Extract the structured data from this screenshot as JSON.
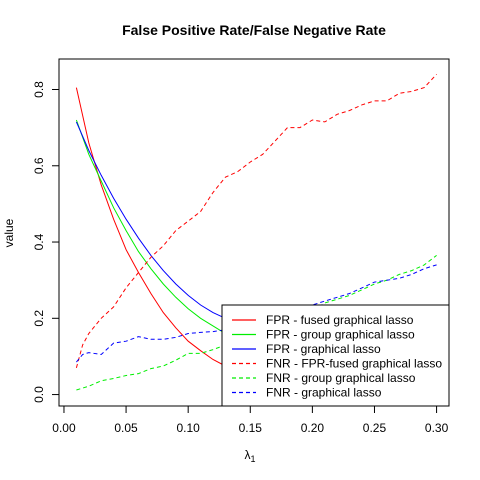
{
  "chart_data": {
    "type": "line",
    "title": "False Positive Rate/False Negative Rate",
    "xlabel_main": "λ",
    "xlabel_sub": "1",
    "ylabel": "value",
    "xlim": [
      -0.004,
      0.31
    ],
    "ylim": [
      -0.03,
      0.88
    ],
    "xticks": [
      {
        "value": 0.0,
        "label": "0.00"
      },
      {
        "value": 0.05,
        "label": "0.05"
      },
      {
        "value": 0.1,
        "label": "0.10"
      },
      {
        "value": 0.15,
        "label": "0.15"
      },
      {
        "value": 0.2,
        "label": "0.20"
      },
      {
        "value": 0.25,
        "label": "0.25"
      },
      {
        "value": 0.3,
        "label": "0.30"
      }
    ],
    "yticks": [
      {
        "value": 0.0,
        "label": "0.0"
      },
      {
        "value": 0.2,
        "label": "0.2"
      },
      {
        "value": 0.4,
        "label": "0.4"
      },
      {
        "value": 0.6,
        "label": "0.6"
      },
      {
        "value": 0.8,
        "label": "0.8"
      }
    ],
    "legend_position": "bottom-right",
    "series": [
      {
        "name": "FPR - fused graphical lasso",
        "color": "#ff0000",
        "dash": "solid",
        "x": [
          0.01,
          0.02,
          0.03,
          0.04,
          0.05,
          0.06,
          0.07,
          0.08,
          0.09,
          0.1,
          0.11,
          0.12,
          0.13,
          0.14
        ],
        "y": [
          0.805,
          0.66,
          0.55,
          0.46,
          0.38,
          0.32,
          0.265,
          0.215,
          0.175,
          0.14,
          0.115,
          0.092,
          0.075,
          0.06
        ]
      },
      {
        "name": "FPR - group graphical lasso",
        "color": "#00ee00",
        "dash": "solid",
        "x": [
          0.01,
          0.02,
          0.03,
          0.04,
          0.05,
          0.06,
          0.07,
          0.08,
          0.09,
          0.1,
          0.11,
          0.12,
          0.13,
          0.14,
          0.15
        ],
        "y": [
          0.72,
          0.63,
          0.56,
          0.49,
          0.43,
          0.375,
          0.33,
          0.29,
          0.255,
          0.225,
          0.2,
          0.18,
          0.16,
          0.148,
          0.138
        ]
      },
      {
        "name": "FPR - graphical lasso",
        "color": "#0000ff",
        "dash": "solid",
        "x": [
          0.01,
          0.02,
          0.03,
          0.04,
          0.05,
          0.06,
          0.07,
          0.08,
          0.09,
          0.1,
          0.11,
          0.12,
          0.13,
          0.14,
          0.15
        ],
        "y": [
          0.715,
          0.64,
          0.575,
          0.515,
          0.46,
          0.41,
          0.365,
          0.325,
          0.29,
          0.26,
          0.235,
          0.215,
          0.2,
          0.188,
          0.178
        ]
      },
      {
        "name": "FNR - FPR-fused graphical lasso",
        "color": "#ff0000",
        "dash": "dashed",
        "x": [
          0.01,
          0.015,
          0.02,
          0.03,
          0.04,
          0.05,
          0.06,
          0.07,
          0.08,
          0.09,
          0.1,
          0.11,
          0.12,
          0.13,
          0.14,
          0.15,
          0.16,
          0.17,
          0.18,
          0.19,
          0.2,
          0.21,
          0.22,
          0.23,
          0.24,
          0.25,
          0.26,
          0.27,
          0.28,
          0.29,
          0.3
        ],
        "y": [
          0.07,
          0.13,
          0.16,
          0.2,
          0.23,
          0.28,
          0.32,
          0.36,
          0.39,
          0.43,
          0.455,
          0.48,
          0.53,
          0.57,
          0.585,
          0.61,
          0.63,
          0.665,
          0.7,
          0.7,
          0.72,
          0.715,
          0.735,
          0.745,
          0.76,
          0.77,
          0.77,
          0.79,
          0.795,
          0.805,
          0.84
        ]
      },
      {
        "name": "FNR - group graphical lasso",
        "color": "#00ee00",
        "dash": "dashed",
        "x": [
          0.01,
          0.02,
          0.03,
          0.04,
          0.05,
          0.06,
          0.07,
          0.08,
          0.09,
          0.1,
          0.11,
          0.12,
          0.13,
          0.14,
          0.15,
          0.16,
          0.17,
          0.18,
          0.19,
          0.2,
          0.21,
          0.22,
          0.23,
          0.24,
          0.25,
          0.26,
          0.27,
          0.28,
          0.29,
          0.3
        ],
        "y": [
          0.012,
          0.022,
          0.036,
          0.042,
          0.05,
          0.055,
          0.068,
          0.075,
          0.09,
          0.108,
          0.108,
          0.118,
          0.13,
          0.15,
          0.17,
          0.18,
          0.19,
          0.2,
          0.21,
          0.22,
          0.24,
          0.25,
          0.26,
          0.275,
          0.29,
          0.3,
          0.315,
          0.325,
          0.34,
          0.365
        ]
      },
      {
        "name": "FNR - graphical lasso",
        "color": "#0000ff",
        "dash": "dashed",
        "x": [
          0.01,
          0.015,
          0.02,
          0.03,
          0.04,
          0.05,
          0.06,
          0.07,
          0.08,
          0.09,
          0.1,
          0.11,
          0.12,
          0.13,
          0.14,
          0.15,
          0.16,
          0.17,
          0.18,
          0.19,
          0.2,
          0.21,
          0.22,
          0.23,
          0.24,
          0.25,
          0.26,
          0.27,
          0.28,
          0.29,
          0.3
        ],
        "y": [
          0.085,
          0.105,
          0.11,
          0.105,
          0.135,
          0.14,
          0.152,
          0.145,
          0.145,
          0.15,
          0.16,
          0.163,
          0.165,
          0.17,
          0.185,
          0.19,
          0.205,
          0.21,
          0.22,
          0.225,
          0.235,
          0.245,
          0.255,
          0.265,
          0.28,
          0.295,
          0.3,
          0.305,
          0.315,
          0.33,
          0.34
        ]
      }
    ]
  }
}
